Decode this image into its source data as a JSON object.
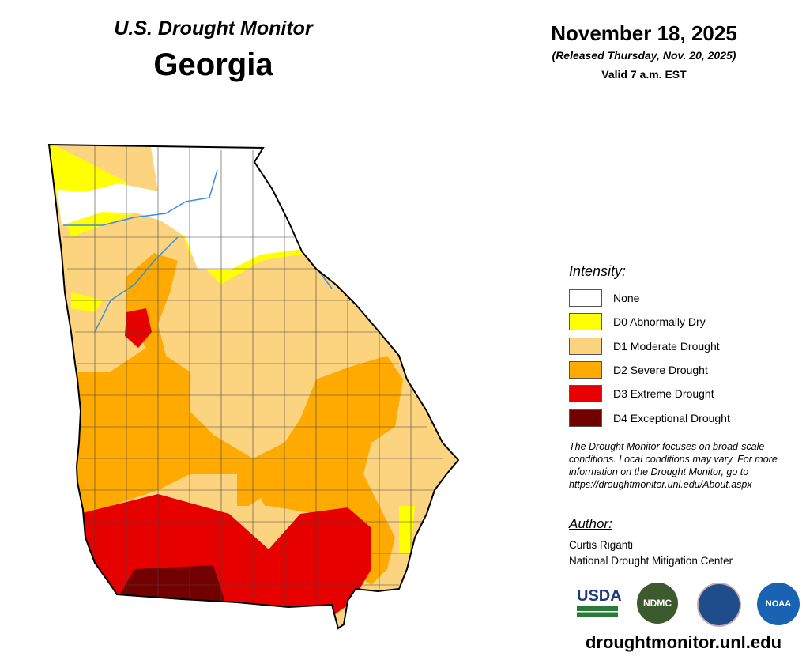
{
  "header": {
    "program": "U.S. Drought Monitor",
    "title": "Georgia",
    "date": "November 18, 2025",
    "released": "(Released Thursday, Nov. 20, 2025)",
    "valid": "Valid 7 a.m. EST"
  },
  "legend": {
    "title": "Intensity:",
    "items": [
      {
        "label": "None",
        "color": "#ffffff"
      },
      {
        "label": "D0 Abnormally Dry",
        "color": "#ffff00"
      },
      {
        "label": "D1 Moderate Drought",
        "color": "#fcd37f"
      },
      {
        "label": "D2 Severe Drought",
        "color": "#ffaa00"
      },
      {
        "label": "D3 Extreme Drought",
        "color": "#e60000"
      },
      {
        "label": "D4 Exceptional Drought",
        "color": "#730000"
      }
    ]
  },
  "note": "The Drought Monitor focuses on broad-scale conditions. Local conditions may vary. For more information on the Drought Monitor, go to https://droughtmonitor.unl.edu/About.aspx",
  "author": {
    "heading": "Author:",
    "name": "Curtis Riganti",
    "organization": "National Drought Mitigation Center"
  },
  "logos": [
    "USDA",
    "NDMC",
    "NOAA"
  ],
  "url": "droughtmonitor.unl.edu"
}
